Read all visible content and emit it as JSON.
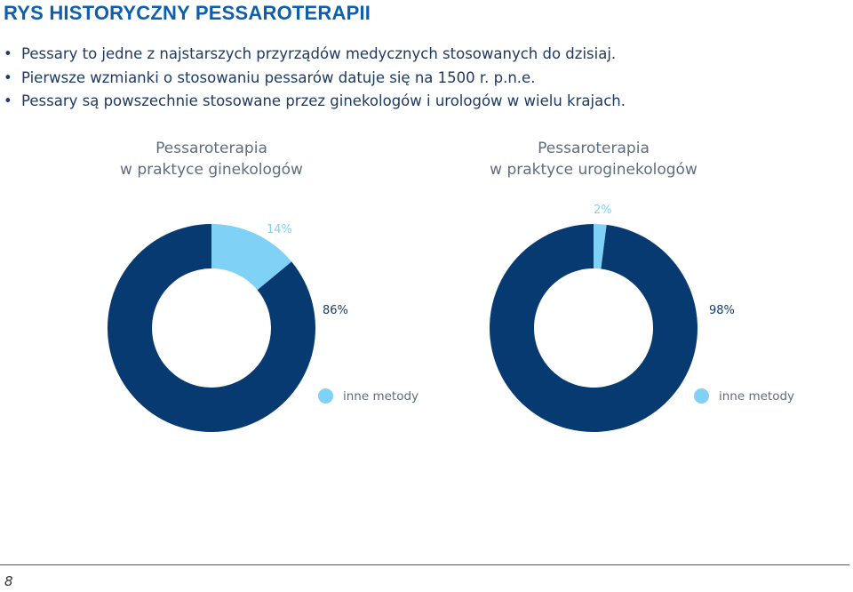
{
  "heading": "RYS HISTORYCZNY PESSAROTERAPII",
  "bullets": [
    "Pessary to jedne z najstarszych przyrządów medycznych stosowanych do dzisiaj.",
    "Pierwsze wzmianki o stosowaniu pessarów datuje się na 1500 r. p.n.e.",
    "Pessary są powszechnie stosowane przez ginekologów i urologów w wielu krajach."
  ],
  "colors": {
    "heading": "#0b5fae",
    "dark_segment": "#063a70",
    "light_segment": "#7fd1f6"
  },
  "chart_data": [
    {
      "type": "pie",
      "title_line1": "Pessaroterapia",
      "title_line2": "w praktyce ginekologów",
      "slices": [
        {
          "label": "14%",
          "value": 14
        },
        {
          "label": "86%",
          "value": 86
        }
      ],
      "legend": [
        "inne metody"
      ]
    },
    {
      "type": "pie",
      "title_line1": "Pessaroterapia",
      "title_line2": "w praktyce uroginekologów",
      "slices": [
        {
          "label": "2%",
          "value": 2
        },
        {
          "label": "98%",
          "value": 98
        }
      ],
      "legend": [
        "inne metody"
      ]
    }
  ],
  "page_number": "8"
}
